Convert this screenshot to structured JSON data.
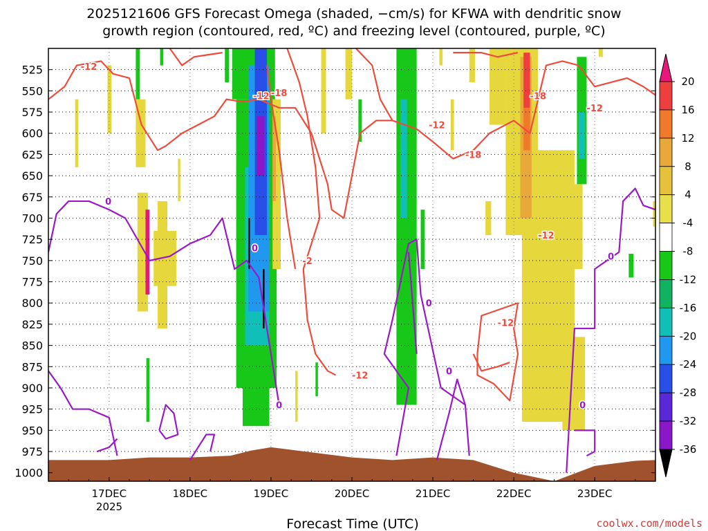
{
  "chart_data": {
    "type": "heatmap",
    "title_line1": "2025121606 GFS Forecast Omega (shaded, −cm/s) for KFWA with dendritic snow",
    "title_line2": "growth region (contoured, red, ºC) and freezing level (contoured, purple, ºC)",
    "xlabel": "Forecast Time (UTC)",
    "ylabel": "",
    "x_categories": [
      "17DEC",
      "18DEC",
      "19DEC",
      "20DEC",
      "21DEC",
      "22DEC",
      "23DEC"
    ],
    "x_year_label": "2025",
    "x_range_days": [
      16.25,
      23.75
    ],
    "y_levels": [
      525,
      550,
      575,
      600,
      625,
      650,
      675,
      700,
      725,
      750,
      775,
      800,
      825,
      850,
      875,
      900,
      925,
      950,
      975,
      1000
    ],
    "y_range_hpa": [
      500,
      1010
    ],
    "grid": true,
    "colorbar": {
      "ticks": [
        "20",
        "16",
        "12",
        "8",
        "4",
        "-4",
        "-8",
        "-12",
        "-16",
        "-20",
        "-24",
        "-28",
        "-32",
        "-36"
      ],
      "colors": [
        "#e8187a",
        "#ef3e3e",
        "#f07a2a",
        "#e8a83a",
        "#e6c23a",
        "#e8e04a",
        "#ffffff",
        "#18c818",
        "#10b460",
        "#10c0b8",
        "#2098f0",
        "#2850e8",
        "#5a28d8",
        "#8a18c8",
        "#a8a8a8",
        "#000000"
      ]
    },
    "omega_regions": [
      {
        "color": "#e6d83c",
        "t0": 16.58,
        "t1": 16.62,
        "p0": 560,
        "p1": 640
      },
      {
        "color": "#e6d83c",
        "t0": 16.98,
        "t1": 17.03,
        "p0": 520,
        "p1": 600
      },
      {
        "color": "#18c818",
        "t0": 17.33,
        "t1": 17.38,
        "p0": 500,
        "p1": 560
      },
      {
        "color": "#e6d83c",
        "t0": 17.33,
        "t1": 17.45,
        "p0": 560,
        "p1": 640
      },
      {
        "color": "#18c818",
        "t0": 17.63,
        "t1": 17.67,
        "p0": 500,
        "p1": 520
      },
      {
        "color": "#e6d83c",
        "t0": 17.35,
        "t1": 17.48,
        "p0": 670,
        "p1": 810
      },
      {
        "color": "#e6d83c",
        "t0": 17.55,
        "t1": 17.83,
        "p0": 715,
        "p1": 780
      },
      {
        "color": "#e6d83c",
        "t0": 17.6,
        "t1": 17.72,
        "p0": 680,
        "p1": 830
      },
      {
        "color": "#e8187a",
        "t0": 17.45,
        "t1": 17.5,
        "p0": 690,
        "p1": 790
      },
      {
        "color": "#18c818",
        "t0": 17.46,
        "t1": 17.5,
        "p0": 865,
        "p1": 940
      },
      {
        "color": "#e6d83c",
        "t0": 17.85,
        "t1": 17.88,
        "p0": 630,
        "p1": 680
      },
      {
        "color": "#18c818",
        "t0": 18.43,
        "t1": 18.48,
        "p0": 500,
        "p1": 540
      },
      {
        "color": "#18c818",
        "t0": 18.52,
        "t1": 19.05,
        "p0": 500,
        "p1": 560
      },
      {
        "color": "#18c818",
        "t0": 18.57,
        "t1": 19.07,
        "p0": 560,
        "p1": 900
      },
      {
        "color": "#18c818",
        "t0": 18.65,
        "t1": 18.98,
        "p0": 900,
        "p1": 945
      },
      {
        "color": "#10c0b8",
        "t0": 18.68,
        "t1": 18.98,
        "p0": 640,
        "p1": 850
      },
      {
        "color": "#2098f0",
        "t0": 18.72,
        "t1": 18.98,
        "p0": 520,
        "p1": 810
      },
      {
        "color": "#2850e8",
        "t0": 18.8,
        "t1": 18.95,
        "p0": 500,
        "p1": 720
      },
      {
        "color": "#8a18c8",
        "t0": 18.82,
        "t1": 18.92,
        "p0": 580,
        "p1": 650
      },
      {
        "color": "#000000",
        "t0": 18.72,
        "t1": 18.74,
        "p0": 700,
        "p1": 760
      },
      {
        "color": "#000000",
        "t0": 18.9,
        "t1": 18.92,
        "p0": 760,
        "p1": 830
      },
      {
        "color": "#e6d83c",
        "t0": 19.02,
        "t1": 19.12,
        "p0": 560,
        "p1": 760
      },
      {
        "color": "#e8a83a",
        "t0": 19.02,
        "t1": 19.06,
        "p0": 580,
        "p1": 680
      },
      {
        "color": "#e6d83c",
        "t0": 19.3,
        "t1": 19.33,
        "p0": 880,
        "p1": 940
      },
      {
        "color": "#18c818",
        "t0": 19.55,
        "t1": 19.58,
        "p0": 870,
        "p1": 910
      },
      {
        "color": "#e6d83c",
        "t0": 19.62,
        "t1": 19.68,
        "p0": 500,
        "p1": 600
      },
      {
        "color": "#e6d83c",
        "t0": 19.92,
        "t1": 20.0,
        "p0": 500,
        "p1": 560
      },
      {
        "color": "#18c818",
        "t0": 20.08,
        "t1": 20.12,
        "p0": 560,
        "p1": 610
      },
      {
        "color": "#18c818",
        "t0": 20.55,
        "t1": 20.8,
        "p0": 500,
        "p1": 920
      },
      {
        "color": "#10c0b8",
        "t0": 20.6,
        "t1": 20.68,
        "p0": 560,
        "p1": 700
      },
      {
        "color": "#18c818",
        "t0": 20.85,
        "t1": 20.9,
        "p0": 690,
        "p1": 760
      },
      {
        "color": "#e6d83c",
        "t0": 21.08,
        "t1": 21.12,
        "p0": 500,
        "p1": 520
      },
      {
        "color": "#e6d83c",
        "t0": 21.45,
        "t1": 21.52,
        "p0": 500,
        "p1": 540
      },
      {
        "color": "#e6d83c",
        "t0": 21.65,
        "t1": 21.72,
        "p0": 680,
        "p1": 720
      },
      {
        "color": "#e6d83c",
        "t0": 21.7,
        "t1": 21.9,
        "p0": 500,
        "p1": 590
      },
      {
        "color": "#e6d83c",
        "t0": 21.9,
        "t1": 22.3,
        "p0": 500,
        "p1": 720
      },
      {
        "color": "#e6d83c",
        "t0": 22.1,
        "t1": 22.75,
        "p0": 620,
        "p1": 940
      },
      {
        "color": "#e6d83c",
        "t0": 22.6,
        "t1": 22.88,
        "p0": 840,
        "p1": 950
      },
      {
        "color": "#e6d83c",
        "t0": 22.4,
        "t1": 22.85,
        "p0": 660,
        "p1": 760
      },
      {
        "color": "#e8a83a",
        "t0": 22.08,
        "t1": 22.22,
        "p0": 510,
        "p1": 700
      },
      {
        "color": "#ef3e3e",
        "t0": 22.12,
        "t1": 22.2,
        "p0": 505,
        "p1": 570
      },
      {
        "color": "#f07a2a",
        "t0": 22.12,
        "t1": 22.2,
        "p0": 570,
        "p1": 620
      },
      {
        "color": "#18c818",
        "t0": 22.78,
        "t1": 22.9,
        "p0": 510,
        "p1": 660
      },
      {
        "color": "#10c0b8",
        "t0": 22.8,
        "t1": 22.88,
        "p0": 575,
        "p1": 630
      },
      {
        "color": "#e6d83c",
        "t0": 23.05,
        "t1": 23.1,
        "p0": 500,
        "p1": 510
      },
      {
        "color": "#18c818",
        "t0": 23.42,
        "t1": 23.48,
        "p0": 742,
        "p1": 770
      },
      {
        "color": "#e6d83c",
        "t0": 23.72,
        "t1": 23.75,
        "p0": 680,
        "p1": 710
      },
      {
        "color": "#e6d83c",
        "t0": 21.22,
        "t1": 21.26,
        "p0": 560,
        "p1": 620
      }
    ],
    "terrain": {
      "color": "#a0522d",
      "points": [
        [
          16.25,
          985
        ],
        [
          17.0,
          985
        ],
        [
          17.5,
          982
        ],
        [
          18.0,
          982
        ],
        [
          18.5,
          980
        ],
        [
          18.75,
          974
        ],
        [
          19.0,
          970
        ],
        [
          19.5,
          976
        ],
        [
          20.0,
          982
        ],
        [
          20.5,
          985
        ],
        [
          21.0,
          982
        ],
        [
          21.5,
          985
        ],
        [
          22.0,
          1000
        ],
        [
          22.5,
          1010
        ],
        [
          23.0,
          992
        ],
        [
          23.5,
          986
        ],
        [
          23.75,
          985
        ]
      ]
    },
    "dgz_contours": [
      {
        "points": [
          [
            16.25,
            560
          ],
          [
            16.45,
            545
          ],
          [
            16.6,
            520
          ],
          [
            16.9,
            515
          ],
          [
            17.05,
            530
          ],
          [
            17.25,
            535
          ],
          [
            17.4,
            590
          ],
          [
            17.6,
            620
          ],
          [
            17.7,
            615
          ],
          [
            17.9,
            600
          ],
          [
            18.1,
            590
          ],
          [
            18.3,
            580
          ],
          [
            18.45,
            560
          ],
          [
            18.65,
            563
          ],
          [
            18.85,
            560
          ],
          [
            19.1,
            570
          ],
          [
            19.3,
            570
          ],
          [
            19.5,
            600
          ],
          [
            19.7,
            660
          ],
          [
            19.75,
            690
          ],
          [
            19.9,
            700
          ],
          [
            20.1,
            600
          ],
          [
            20.3,
            585
          ],
          [
            20.5,
            585
          ],
          [
            20.8,
            595
          ],
          [
            21.0,
            610
          ],
          [
            21.25,
            630
          ],
          [
            21.5,
            620
          ],
          [
            21.7,
            600
          ],
          [
            22.0,
            585
          ],
          [
            22.2,
            600
          ],
          [
            22.4,
            520
          ],
          [
            22.6,
            515
          ],
          [
            22.8,
            520
          ],
          [
            23.0,
            545
          ],
          [
            23.2,
            540
          ],
          [
            23.4,
            535
          ],
          [
            23.6,
            545
          ],
          [
            23.75,
            555
          ]
        ]
      },
      {
        "points": [
          [
            17.75,
            500
          ],
          [
            17.9,
            520
          ],
          [
            18.05,
            510
          ],
          [
            18.4,
            505
          ]
        ]
      },
      {
        "points": [
          [
            19.2,
            500
          ],
          [
            19.35,
            540
          ],
          [
            19.45,
            580
          ],
          [
            19.55,
            640
          ],
          [
            19.6,
            700
          ],
          [
            19.4,
            760
          ],
          [
            19.45,
            820
          ],
          [
            19.55,
            860
          ],
          [
            19.7,
            880
          ],
          [
            19.8,
            885
          ]
        ]
      },
      {
        "points": [
          [
            18.95,
            520
          ],
          [
            19.0,
            560
          ],
          [
            19.1,
            620
          ],
          [
            19.2,
            700
          ],
          [
            19.3,
            760
          ]
        ]
      },
      {
        "points": [
          [
            20.05,
            500
          ],
          [
            20.25,
            520
          ],
          [
            20.35,
            560
          ],
          [
            20.5,
            585
          ]
        ]
      },
      {
        "points": [
          [
            21.25,
            505
          ],
          [
            21.6,
            505
          ],
          [
            21.8,
            510
          ],
          [
            22.05,
            505
          ]
        ]
      },
      {
        "points": [
          [
            22.05,
            800
          ],
          [
            21.6,
            815
          ],
          [
            21.55,
            860
          ],
          [
            21.55,
            885
          ],
          [
            21.75,
            895
          ],
          [
            21.95,
            915
          ],
          [
            22.05,
            860
          ],
          [
            22.0,
            830
          ],
          [
            22.05,
            800
          ]
        ]
      },
      {
        "points": [
          [
            21.5,
            860
          ],
          [
            21.6,
            880
          ],
          [
            21.8,
            875
          ],
          [
            21.95,
            870
          ]
        ]
      }
    ],
    "frz_contours": [
      {
        "points": [
          [
            16.25,
            740
          ],
          [
            16.35,
            695
          ],
          [
            16.5,
            680
          ],
          [
            16.75,
            680
          ],
          [
            17.0,
            690
          ],
          [
            17.2,
            700
          ],
          [
            17.5,
            750
          ],
          [
            17.75,
            745
          ],
          [
            18.0,
            730
          ],
          [
            18.25,
            720
          ],
          [
            18.4,
            700
          ],
          [
            18.5,
            740
          ],
          [
            18.55,
            760
          ],
          [
            18.7,
            750
          ],
          [
            18.85,
            770
          ],
          [
            19.0,
            860
          ],
          [
            19.1,
            920
          ]
        ]
      },
      {
        "points": [
          [
            16.25,
            880
          ],
          [
            16.4,
            900
          ],
          [
            16.55,
            925
          ],
          [
            16.75,
            925
          ],
          [
            17.0,
            935
          ],
          [
            17.1,
            980
          ]
        ]
      },
      {
        "points": [
          [
            16.85,
            975
          ],
          [
            17.0,
            970
          ],
          [
            17.1,
            960
          ]
        ]
      },
      {
        "points": [
          [
            17.62,
            950
          ],
          [
            17.7,
            920
          ],
          [
            17.8,
            930
          ],
          [
            17.85,
            955
          ],
          [
            17.7,
            960
          ],
          [
            17.62,
            950
          ]
        ]
      },
      {
        "points": [
          [
            18.0,
            985
          ],
          [
            18.2,
            955
          ],
          [
            18.3,
            955
          ],
          [
            18.25,
            975
          ]
        ]
      },
      {
        "points": [
          [
            20.55,
            980
          ],
          [
            20.7,
            900
          ],
          [
            20.4,
            860
          ],
          [
            20.5,
            820
          ],
          [
            20.7,
            730
          ],
          [
            20.8,
            725
          ],
          [
            20.85,
            790
          ],
          [
            21.1,
            900
          ],
          [
            21.4,
            920
          ]
        ]
      },
      {
        "points": [
          [
            20.7,
            740
          ],
          [
            20.75,
            800
          ],
          [
            20.8,
            860
          ]
        ]
      },
      {
        "points": [
          [
            21.05,
            985
          ],
          [
            21.2,
            930
          ],
          [
            21.3,
            890
          ],
          [
            21.4,
            920
          ],
          [
            21.45,
            980
          ]
        ]
      },
      {
        "points": [
          [
            22.65,
            1000
          ],
          [
            22.75,
            830
          ],
          [
            23.0,
            830
          ],
          [
            23.0,
            760
          ],
          [
            23.3,
            740
          ],
          [
            23.35,
            680
          ],
          [
            23.5,
            665
          ],
          [
            23.6,
            685
          ],
          [
            23.75,
            690
          ]
        ]
      },
      {
        "points": [
          [
            22.75,
            950
          ],
          [
            23.0,
            950
          ],
          [
            23.0,
            975
          ],
          [
            22.9,
            980
          ]
        ]
      }
    ],
    "contour_labels": [
      {
        "text": "-12",
        "kind": "dgz",
        "t": 16.75,
        "p": 521
      },
      {
        "text": "-12",
        "kind": "dgz",
        "t": 18.88,
        "p": 556
      },
      {
        "text": "-18",
        "kind": "dgz",
        "t": 19.1,
        "p": 552
      },
      {
        "text": "-12",
        "kind": "dgz",
        "t": 21.05,
        "p": 590
      },
      {
        "text": "-18",
        "kind": "dgz",
        "t": 21.5,
        "p": 625
      },
      {
        "text": "-12",
        "kind": "dgz",
        "t": 22.4,
        "p": 720
      },
      {
        "text": "-18",
        "kind": "dgz",
        "t": 22.3,
        "p": 556
      },
      {
        "text": "-12",
        "kind": "dgz",
        "t": 23.0,
        "p": 570
      },
      {
        "text": "-2",
        "kind": "dgz",
        "t": 19.45,
        "p": 750
      },
      {
        "text": "-12",
        "kind": "dgz",
        "t": 20.1,
        "p": 885
      },
      {
        "text": "-12",
        "kind": "dgz",
        "t": 21.9,
        "p": 823
      },
      {
        "text": "0",
        "kind": "frz",
        "t": 16.99,
        "p": 680
      },
      {
        "text": "0",
        "kind": "frz",
        "t": 18.8,
        "p": 735
      },
      {
        "text": "0",
        "kind": "frz",
        "t": 19.1,
        "p": 920
      },
      {
        "text": "0",
        "kind": "frz",
        "t": 20.95,
        "p": 800
      },
      {
        "text": "0",
        "kind": "frz",
        "t": 21.2,
        "p": 880
      },
      {
        "text": "0",
        "kind": "frz",
        "t": 22.85,
        "p": 920
      },
      {
        "text": "0",
        "kind": "frz",
        "t": 23.2,
        "p": 745
      }
    ]
  },
  "footer": {
    "credit": "coolwx.com/models"
  }
}
